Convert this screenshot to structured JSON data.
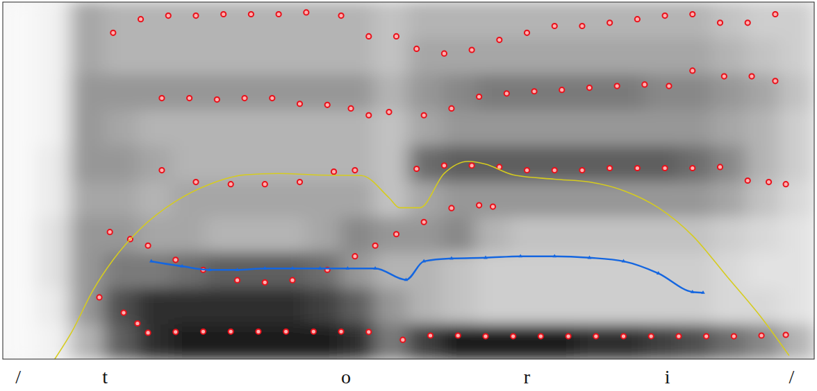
{
  "chart_data": [
    {
      "type": "spectrogram",
      "xlim": [
        0,
        100
      ],
      "ylim": [
        0,
        5000
      ],
      "tick_labels": false,
      "spectrogram": [
        [
          0.05,
          0.1,
          0.4,
          0.7,
          0.85,
          0.9,
          0.9,
          0.9,
          0.9,
          0.9,
          0.85,
          0.6,
          0.8,
          0.9,
          0.9,
          0.9,
          0.9,
          0.85,
          0.85,
          0.8,
          0.75,
          0.65,
          0.55,
          0.4
        ],
        [
          0.05,
          0.15,
          0.5,
          0.75,
          0.85,
          0.85,
          0.85,
          0.85,
          0.85,
          0.8,
          0.7,
          0.5,
          0.4,
          0.35,
          0.3,
          0.3,
          0.3,
          0.3,
          0.3,
          0.3,
          0.3,
          0.25,
          0.25,
          0.2
        ],
        [
          0.05,
          0.2,
          0.5,
          0.6,
          0.6,
          0.65,
          0.7,
          0.7,
          0.7,
          0.65,
          0.5,
          0.4,
          0.4,
          0.35,
          0.3,
          0.3,
          0.3,
          0.3,
          0.3,
          0.3,
          0.3,
          0.25,
          0.2,
          0.2
        ],
        [
          0.05,
          0.2,
          0.5,
          0.5,
          0.45,
          0.45,
          0.4,
          0.4,
          0.4,
          0.45,
          0.55,
          0.5,
          0.5,
          0.55,
          0.4,
          0.35,
          0.35,
          0.35,
          0.35,
          0.35,
          0.35,
          0.3,
          0.25,
          0.2
        ],
        [
          0.05,
          0.15,
          0.45,
          0.45,
          0.4,
          0.45,
          0.45,
          0.45,
          0.45,
          0.45,
          0.45,
          0.35,
          0.45,
          0.5,
          0.5,
          0.5,
          0.5,
          0.5,
          0.5,
          0.5,
          0.5,
          0.45,
          0.35,
          0.25
        ],
        [
          0.05,
          0.15,
          0.5,
          0.5,
          0.45,
          0.4,
          0.4,
          0.4,
          0.4,
          0.4,
          0.4,
          0.35,
          0.65,
          0.7,
          0.7,
          0.7,
          0.7,
          0.7,
          0.7,
          0.7,
          0.65,
          0.55,
          0.4,
          0.3
        ],
        [
          0.05,
          0.1,
          0.5,
          0.45,
          0.4,
          0.4,
          0.4,
          0.4,
          0.4,
          0.4,
          0.4,
          0.35,
          0.45,
          0.5,
          0.5,
          0.5,
          0.5,
          0.5,
          0.5,
          0.5,
          0.5,
          0.45,
          0.4,
          0.3
        ],
        [
          0.05,
          0.1,
          0.5,
          0.5,
          0.5,
          0.5,
          0.5,
          0.5,
          0.5,
          0.5,
          0.5,
          0.4,
          0.5,
          0.55,
          0.6,
          0.6,
          0.6,
          0.6,
          0.6,
          0.55,
          0.55,
          0.5,
          0.45,
          0.35
        ],
        [
          0.05,
          0.1,
          0.45,
          0.4,
          0.4,
          0.4,
          0.4,
          0.4,
          0.4,
          0.4,
          0.4,
          0.35,
          0.45,
          0.45,
          0.45,
          0.45,
          0.45,
          0.45,
          0.45,
          0.45,
          0.45,
          0.4,
          0.35,
          0.3
        ],
        [
          0.05,
          0.1,
          0.45,
          0.4,
          0.4,
          0.4,
          0.4,
          0.4,
          0.4,
          0.4,
          0.4,
          0.35,
          0.4,
          0.4,
          0.4,
          0.4,
          0.4,
          0.4,
          0.4,
          0.4,
          0.4,
          0.35,
          0.3,
          0.3
        ]
      ],
      "series": [
        {
          "type": "scatter",
          "color": "#e8101a",
          "marker": "circle",
          "x": [
            11.9,
            14.9,
            16.6,
            17.9,
            21.3,
            24.7,
            28.1,
            31.5,
            34.9,
            38.3,
            41.7,
            45.1,
            49.3,
            52.7,
            56.1,
            59.5,
            62.9,
            66.3,
            69.7,
            73.1,
            76.5,
            79.9,
            83.3,
            86.7,
            90.1,
            93.5,
            96.5
          ],
          "values": [
            865,
            650,
            500,
            370,
            380,
            385,
            385,
            385,
            385,
            385,
            385,
            380,
            270,
            330,
            330,
            320,
            320,
            320,
            320,
            320,
            320,
            320,
            320,
            320,
            320,
            330,
            340
          ]
        },
        {
          "type": "scatter",
          "color": "#e8101a",
          "marker": "circle",
          "x": [
            13.2,
            15.7,
            17.9,
            21.3,
            24.7,
            28.9,
            32.3,
            35.7,
            40.0,
            43.4,
            45.9,
            48.5,
            51.9,
            55.3,
            58.7,
            60.4
          ],
          "values": [
            1780,
            1680,
            1590,
            1390,
            1250,
            1105,
            1075,
            1105,
            1250,
            1440,
            1590,
            1750,
            1920,
            2115,
            2155,
            2135
          ]
        },
        {
          "type": "scatter",
          "color": "#e8101a",
          "marker": "circle",
          "x": [
            19.6,
            23.8,
            28.1,
            32.3,
            36.6,
            40.8,
            43.4,
            51.0,
            54.4,
            57.8,
            61.2,
            64.6,
            68.0,
            71.4,
            74.8,
            78.2,
            81.6,
            85.0,
            88.4,
            91.8,
            94.4,
            96.5
          ],
          "values": [
            2645,
            2480,
            2450,
            2450,
            2480,
            2625,
            2645,
            2665,
            2710,
            2710,
            2690,
            2645,
            2645,
            2645,
            2675,
            2675,
            2675,
            2675,
            2690,
            2500,
            2480,
            2450
          ]
        },
        {
          "type": "scatter",
          "color": "#e8101a",
          "marker": "circle",
          "x": [
            19.6,
            23.0,
            26.4,
            29.8,
            33.2,
            36.6,
            40.0,
            42.9,
            45.1,
            47.6,
            51.9,
            55.3,
            58.7,
            62.1,
            65.5,
            68.9,
            72.3,
            75.7,
            79.1,
            82.1,
            85.0,
            88.9,
            92.3,
            95.2
          ],
          "values": [
            3655,
            3655,
            3635,
            3655,
            3655,
            3575,
            3560,
            3510,
            3415,
            3460,
            3415,
            3510,
            3675,
            3720,
            3750,
            3770,
            3800,
            3825,
            3845,
            3825,
            4040,
            3960,
            3960,
            3895
          ]
        },
        {
          "type": "scatter",
          "color": "#e8101a",
          "marker": "circle",
          "x": [
            13.6,
            17.0,
            20.4,
            23.8,
            27.2,
            30.6,
            34.0,
            37.4,
            41.7,
            45.1,
            48.5,
            51.0,
            54.4,
            57.8,
            61.2,
            64.6,
            68.0,
            71.4,
            74.8,
            78.2,
            81.6,
            85.0,
            88.4,
            91.8,
            95.2
          ],
          "values": [
            4570,
            4760,
            4810,
            4810,
            4830,
            4830,
            4830,
            4855,
            4810,
            4520,
            4520,
            4345,
            4280,
            4330,
            4470,
            4570,
            4665,
            4665,
            4710,
            4760,
            4810,
            4830,
            4710,
            4710,
            4830
          ]
        }
      ],
      "annotations": [
        {
          "text": "/",
          "x": 1.9
        },
        {
          "text": "t",
          "x": 12.6
        },
        {
          "text": "o",
          "x": 42.3
        },
        {
          "text": "r",
          "x": 64.6
        },
        {
          "text": "i",
          "x": 81.9
        },
        {
          "text": "/",
          "x": 97.2
        }
      ]
    },
    {
      "type": "line",
      "xlim": [
        0,
        100
      ],
      "ylim": [
        0,
        500
      ],
      "tick_labels": false,
      "series": [
        {
          "color": "#1466e0",
          "marker": "triangle",
          "x": [
            18.3,
            22.1,
            25.5,
            28.9,
            32.3,
            35.7,
            39.1,
            42.5,
            45.9,
            49.7,
            51.9,
            55.3,
            59.5,
            63.8,
            68.0,
            72.3,
            76.5,
            80.8,
            85.0,
            86.3
          ],
          "values": [
            137,
            130,
            125,
            125,
            127,
            127,
            127,
            127,
            127,
            111,
            137,
            141,
            142,
            144,
            144,
            142,
            137,
            120,
            94,
            93
          ]
        }
      ]
    },
    {
      "type": "line",
      "xlim": [
        0,
        100
      ],
      "ylim": [
        50,
        100
      ],
      "tick_labels": false,
      "series": [
        {
          "color": "#d6cc1e",
          "line_style": "solid",
          "x": [
            6.4,
            8.5,
            11.1,
            13.6,
            17.0,
            21.3,
            25.5,
            29.8,
            34.0,
            38.3,
            44.2,
            47.6,
            48.9,
            51.4,
            54.4,
            57.4,
            59.5,
            62.9,
            68.0,
            72.3,
            76.5,
            80.8,
            85.0,
            89.3,
            93.5,
            96.9
          ],
          "values": [
            50.0,
            53.8,
            59.6,
            63.9,
            68.3,
            72.1,
            74.5,
            75.8,
            76.0,
            75.8,
            75.7,
            72.6,
            71.2,
            71.2,
            76.0,
            77.7,
            77.3,
            75.8,
            75.2,
            74.8,
            73.6,
            71.2,
            67.3,
            61.5,
            55.8,
            50.5
          ]
        }
      ]
    }
  ]
}
